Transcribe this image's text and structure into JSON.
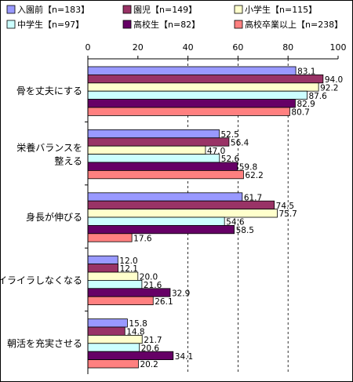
{
  "chart_data": {
    "type": "bar",
    "orientation": "horizontal",
    "categories": [
      "骨を丈夫にする",
      "栄養バランスを\n整える",
      "身長が伸びる",
      "イライラしなくなる",
      "朝活を充実させる"
    ],
    "xlim": [
      0,
      100
    ],
    "ticks": [
      0,
      20,
      40,
      60,
      80,
      100
    ],
    "grid": "dashed vertical lines at 40, 60, 80",
    "legend_position": "top",
    "series": [
      {
        "name": "入園前【n=183】",
        "color": "#9999ff",
        "values": [
          83.1,
          52.5,
          61.7,
          12.0,
          15.8
        ]
      },
      {
        "name": "園児【n=149】",
        "color": "#993366",
        "values": [
          94.0,
          56.4,
          74.5,
          12.1,
          14.8
        ]
      },
      {
        "name": "小学生【n=115】",
        "color": "#ffffcc",
        "values": [
          92.2,
          47.0,
          75.7,
          20.0,
          21.7
        ]
      },
      {
        "name": "中学生【n=97】",
        "color": "#ccffff",
        "values": [
          87.6,
          52.6,
          54.6,
          21.6,
          20.6
        ]
      },
      {
        "name": "高校生【n=82】",
        "color": "#660066",
        "values": [
          82.9,
          59.8,
          58.5,
          32.9,
          34.1
        ]
      },
      {
        "name": "高校卒業以上【n=238】",
        "color": "#ff8080",
        "values": [
          80.7,
          62.2,
          17.6,
          26.1,
          20.2
        ]
      }
    ],
    "value_labels": [
      [
        "83.1",
        "52.5",
        "61.7",
        "12.0",
        "15.8"
      ],
      [
        "94.0",
        "56.4",
        "74.5",
        "12.1",
        "14.8"
      ],
      [
        "92.2",
        "47.0",
        "75.7",
        "20.0",
        "21.7"
      ],
      [
        "87.6",
        "52.6",
        "54.6",
        "21.6",
        "20.6"
      ],
      [
        "82.9",
        "59.8",
        "58.5",
        "32.9",
        "34.1"
      ],
      [
        "80.7",
        "62.2",
        "17.6",
        "26.1",
        "20.2"
      ]
    ]
  }
}
